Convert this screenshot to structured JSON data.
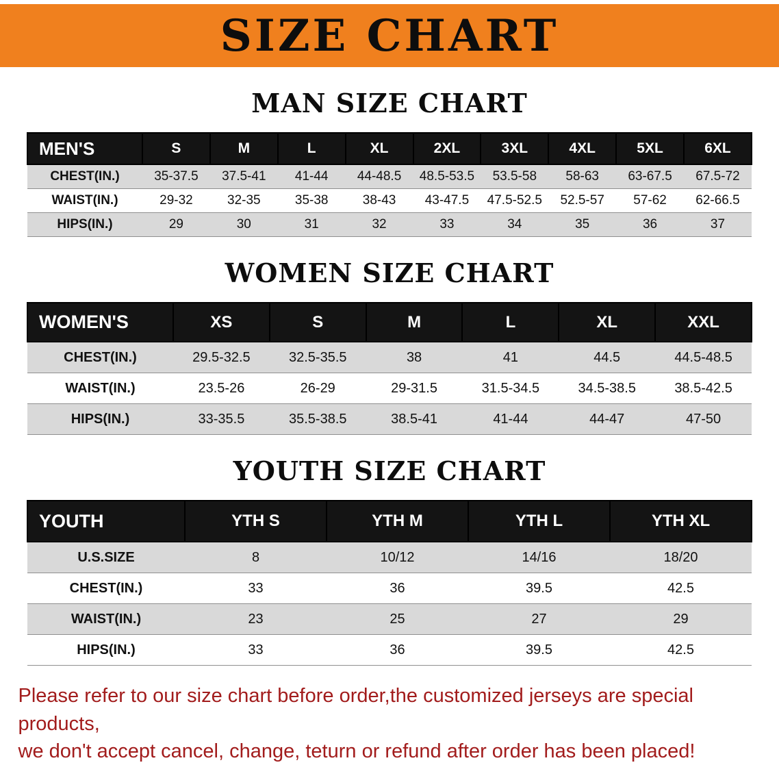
{
  "banner": {
    "title": "SIZE CHART"
  },
  "sections": [
    {
      "id": "men",
      "title": "MAN SIZE CHART",
      "table": {
        "columns": [
          "MEN'S",
          "S",
          "M",
          "L",
          "XL",
          "2XL",
          "3XL",
          "4XL",
          "5XL",
          "6XL"
        ],
        "rows": [
          {
            "label": "CHEST(IN.)",
            "values": [
              "35-37.5",
              "37.5-41",
              "41-44",
              "44-48.5",
              "48.5-53.5",
              "53.5-58",
              "58-63",
              "63-67.5",
              "67.5-72"
            ]
          },
          {
            "label": "WAIST(IN.)",
            "values": [
              "29-32",
              "32-35",
              "35-38",
              "38-43",
              "43-47.5",
              "47.5-52.5",
              "52.5-57",
              "57-62",
              "62-66.5"
            ]
          },
          {
            "label": "HIPS(IN.)",
            "values": [
              "29",
              "30",
              "31",
              "32",
              "33",
              "34",
              "35",
              "36",
              "37"
            ]
          }
        ]
      }
    },
    {
      "id": "women",
      "title": "WOMEN SIZE CHART",
      "table": {
        "columns": [
          "WOMEN'S",
          "XS",
          "S",
          "M",
          "L",
          "XL",
          "XXL"
        ],
        "rows": [
          {
            "label": "CHEST(IN.)",
            "values": [
              "29.5-32.5",
              "32.5-35.5",
              "38",
              "41",
              "44.5",
              "44.5-48.5"
            ]
          },
          {
            "label": "WAIST(IN.)",
            "values": [
              "23.5-26",
              "26-29",
              "29-31.5",
              "31.5-34.5",
              "34.5-38.5",
              "38.5-42.5"
            ]
          },
          {
            "label": "HIPS(IN.)",
            "values": [
              "33-35.5",
              "35.5-38.5",
              "38.5-41",
              "41-44",
              "44-47",
              "47-50"
            ]
          }
        ]
      }
    },
    {
      "id": "youth",
      "title": "YOUTH SIZE CHART",
      "table": {
        "columns": [
          "YOUTH",
          "YTH S",
          "YTH M",
          "YTH L",
          "YTH XL"
        ],
        "rows": [
          {
            "label": "U.S.SIZE",
            "values": [
              "8",
              "10/12",
              "14/16",
              "18/20"
            ]
          },
          {
            "label": "CHEST(IN.)",
            "values": [
              "33",
              "36",
              "39.5",
              "42.5"
            ]
          },
          {
            "label": "WAIST(IN.)",
            "values": [
              "23",
              "25",
              "27",
              "29"
            ]
          },
          {
            "label": "HIPS(IN.)",
            "values": [
              "33",
              "36",
              "39.5",
              "42.5"
            ]
          }
        ]
      }
    }
  ],
  "footer": {
    "lines": [
      "Please refer to our size chart before order,the customized jerseys are special products,",
      "we don't accept cancel, change, teturn or refund after order has been placed!"
    ]
  },
  "colors": {
    "banner_orange": "#f0801e",
    "header_black": "#141414",
    "stripe_gray": "#d9d9d9",
    "footer_red": "#a21c1c"
  }
}
